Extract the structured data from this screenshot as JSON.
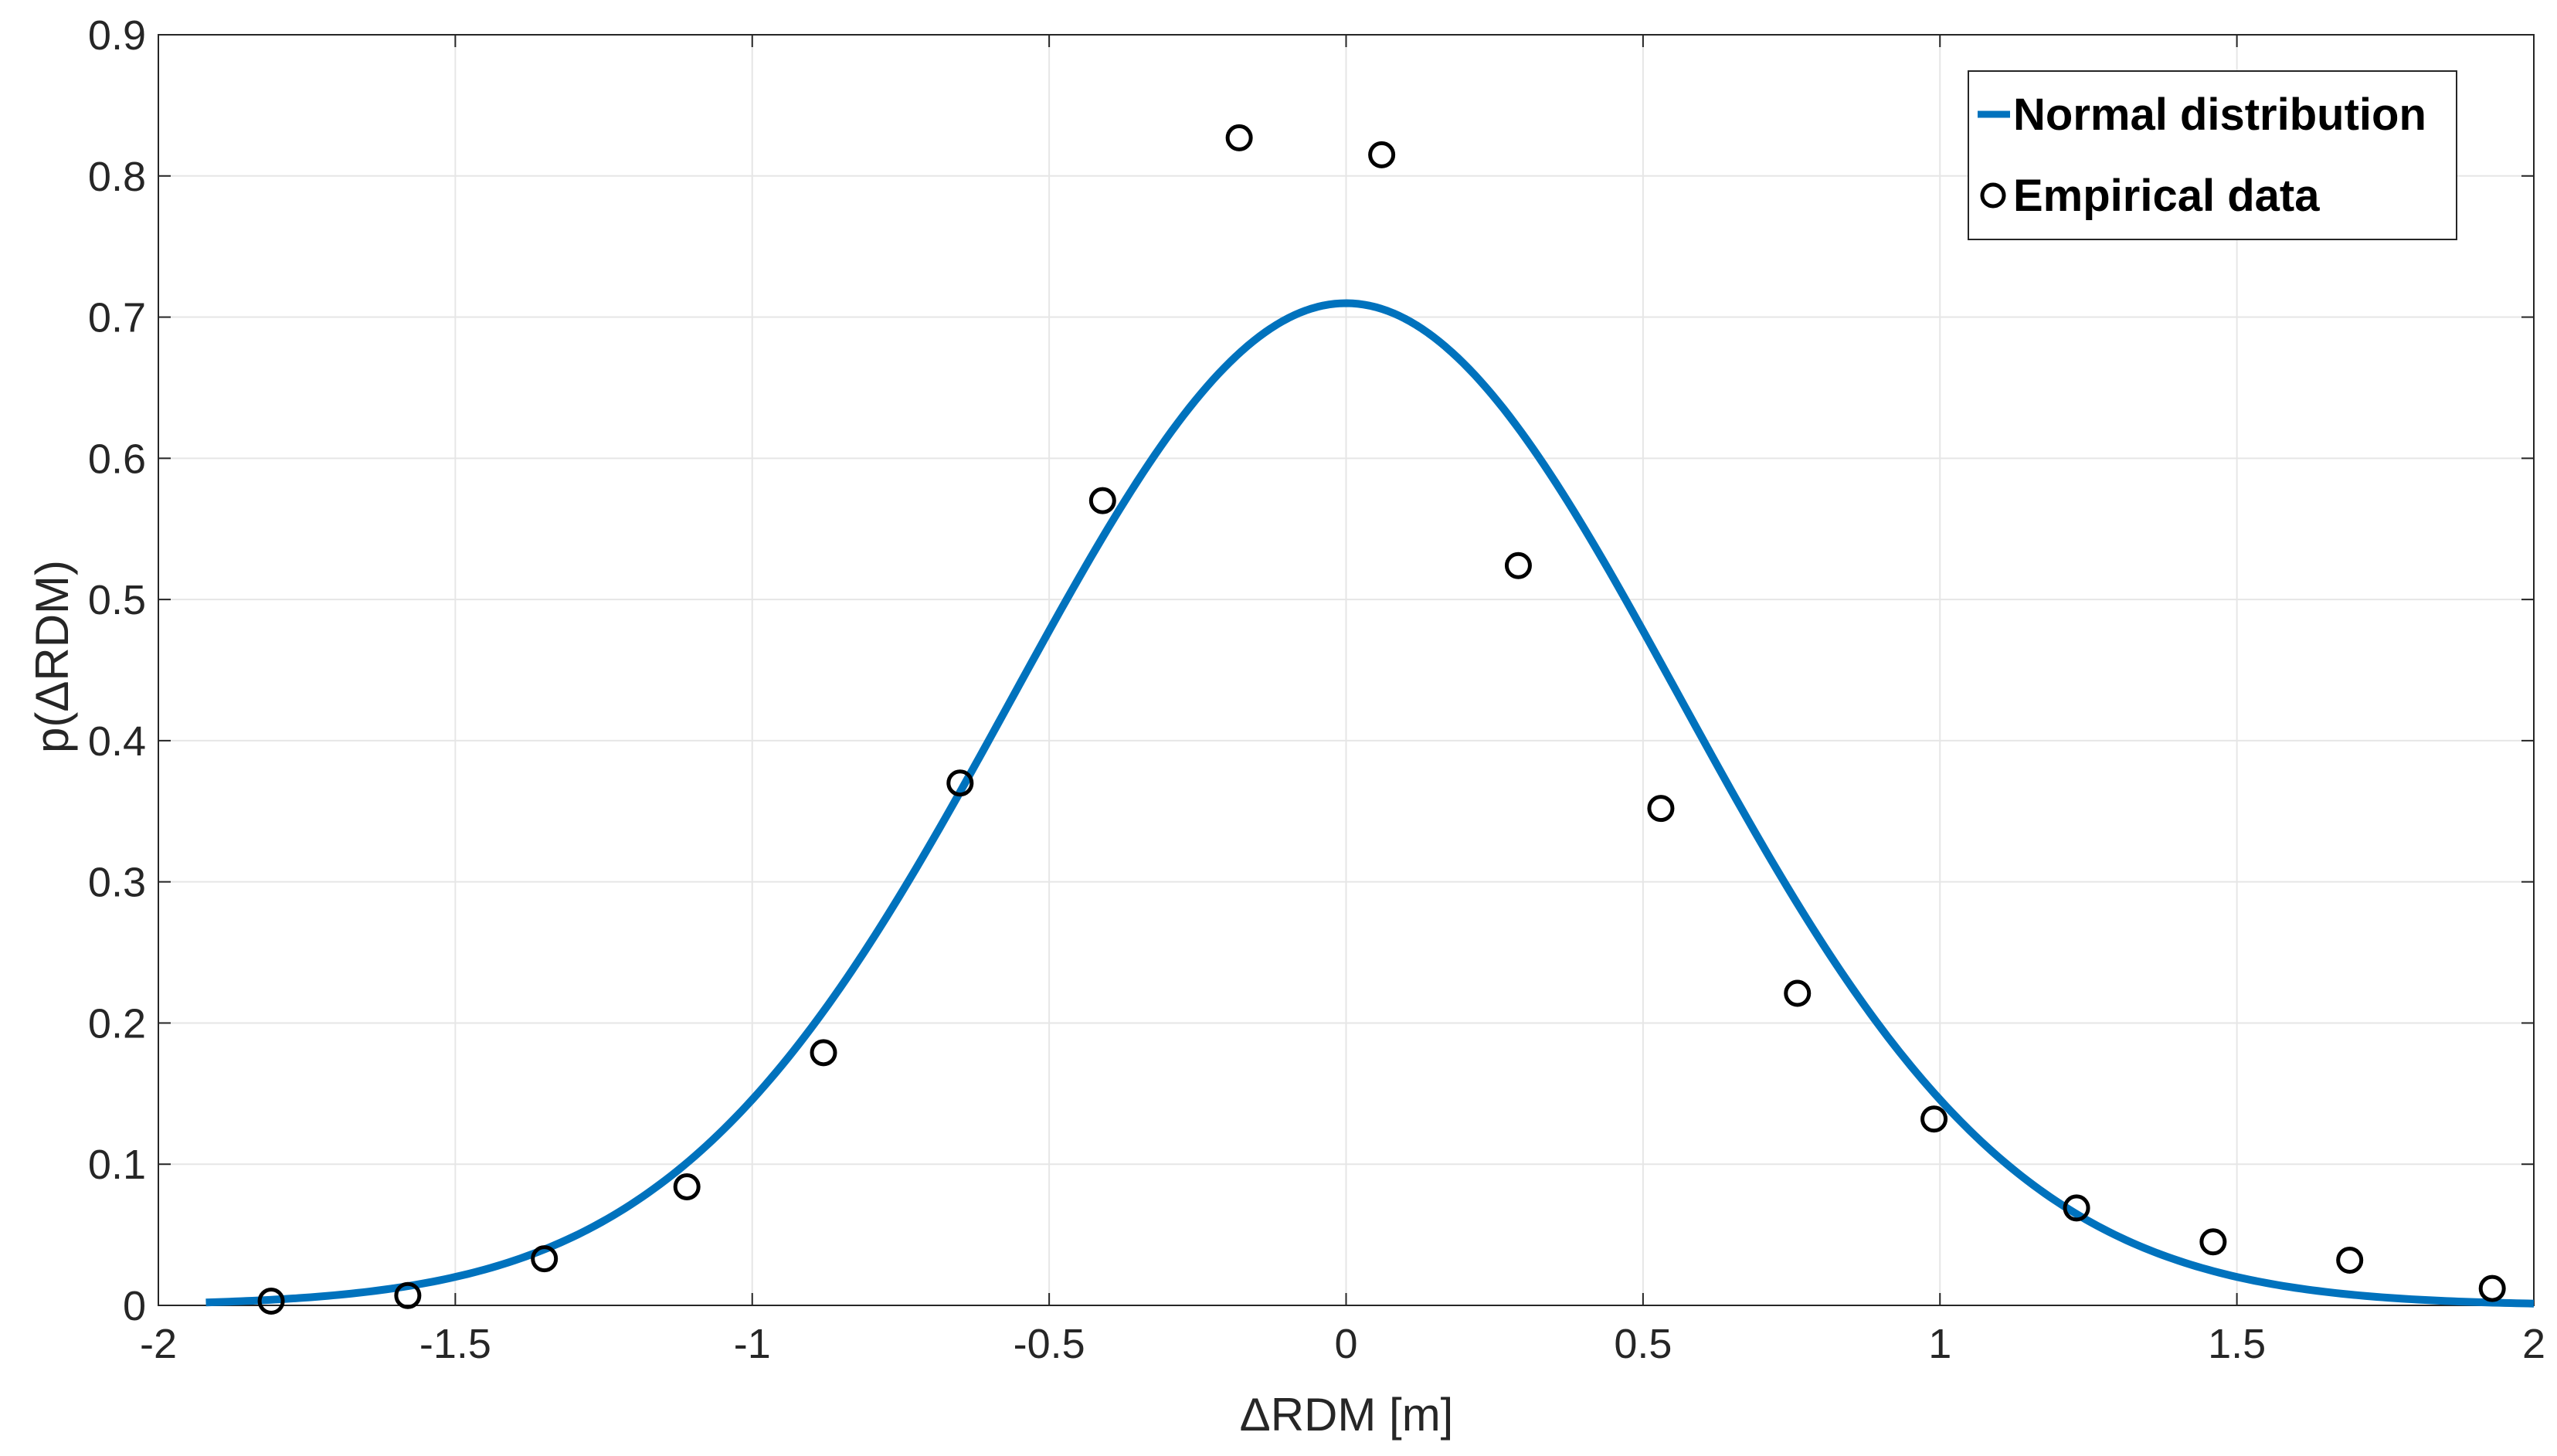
{
  "colors": {
    "line": "#0072bd",
    "marker": "#000000",
    "axis": "#262626",
    "grid": "#e6e6e6"
  },
  "chart_data": {
    "type": "line",
    "title": "",
    "xlabel": "ΔRDM [m]",
    "ylabel": "p(ΔRDM)",
    "xlim": [
      -2,
      2
    ],
    "ylim": [
      0,
      0.9
    ],
    "grid": true,
    "legend_position": "top-right",
    "xticks": [
      -2,
      -1.5,
      -1,
      -0.5,
      0,
      0.5,
      1,
      1.5,
      2
    ],
    "xtick_labels": [
      "-2",
      "-1.5",
      "-1",
      "-0.5",
      "0",
      "0.5",
      "1",
      "1.5",
      "2"
    ],
    "yticks": [
      0,
      0.1,
      0.2,
      0.3,
      0.4,
      0.5,
      0.6,
      0.7,
      0.8,
      0.9
    ],
    "ytick_labels": [
      "0",
      "0.1",
      "0.2",
      "0.3",
      "0.4",
      "0.5",
      "0.6",
      "0.7",
      "0.8",
      "0.9"
    ],
    "series": [
      {
        "name": "Normal distribution",
        "kind": "line",
        "mean": 0,
        "std": 0.562,
        "x_range": [
          -1.92,
          2.0
        ]
      },
      {
        "name": "Empirical data",
        "kind": "scatter",
        "x": [
          -1.81,
          -1.58,
          -1.35,
          -1.11,
          -0.88,
          -0.65,
          -0.41,
          -0.18,
          0.06,
          0.29,
          0.53,
          0.76,
          0.99,
          1.23,
          1.46,
          1.69,
          1.93
        ],
        "y": [
          0.003,
          0.007,
          0.033,
          0.084,
          0.179,
          0.37,
          0.57,
          0.827,
          0.815,
          0.524,
          0.352,
          0.221,
          0.132,
          0.069,
          0.045,
          0.032,
          0.012
        ]
      }
    ]
  }
}
